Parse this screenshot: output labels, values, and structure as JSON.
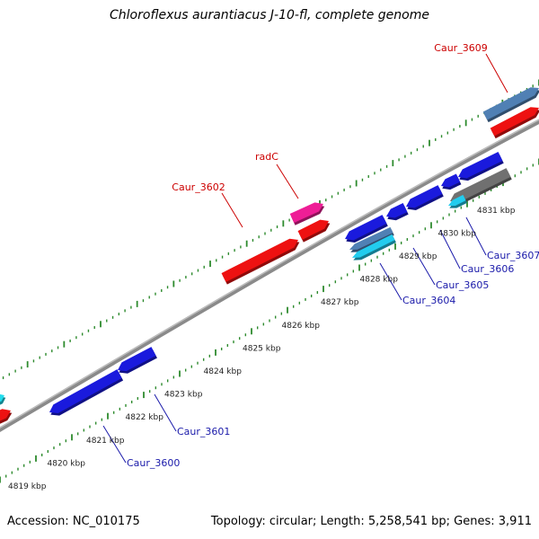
{
  "title": "Chloroflexus aurantiacus J-10-fl, complete genome",
  "accession": "Accession: NC_010175",
  "stats": "Topology: circular; Length: 5,258,541 bp; Genes: 3,911",
  "colors": {
    "backbone": "#8a8a8a",
    "ruler_tick": "#2e8b2e",
    "forward_label": "#cc0000",
    "reverse_label": "#1a1aaa"
  },
  "genes": [
    {
      "id": "fwd-3609-top",
      "strand": "forward",
      "color": "#5080b4"
    },
    {
      "id": "fwd-3609",
      "strand": "forward",
      "color": "#ee1111"
    },
    {
      "id": "fwd-radC-top",
      "strand": "forward",
      "color": "#ee1e96"
    },
    {
      "id": "fwd-radC",
      "strand": "forward",
      "color": "#ee1111"
    },
    {
      "id": "fwd-3602",
      "strand": "forward",
      "color": "#ee1111"
    },
    {
      "id": "fwd-left-cyan",
      "strand": "forward",
      "color": "#22ddee"
    },
    {
      "id": "fwd-left-red",
      "strand": "forward",
      "color": "#ee1111"
    },
    {
      "id": "rev-3600",
      "strand": "reverse",
      "color": "#1a1add"
    },
    {
      "id": "rev-3601",
      "strand": "reverse",
      "color": "#1a1add"
    },
    {
      "id": "rev-3603",
      "strand": "reverse",
      "color": "#1a1add"
    },
    {
      "id": "rev-3604-top",
      "strand": "reverse",
      "color": "#5080b4"
    },
    {
      "id": "rev-3604",
      "strand": "reverse",
      "color": "#22ccee"
    },
    {
      "id": "rev-3605",
      "strand": "reverse",
      "color": "#1a1add"
    },
    {
      "id": "rev-3606",
      "strand": "reverse",
      "color": "#1a1add"
    },
    {
      "id": "rev-3607-top",
      "strand": "reverse",
      "color": "#1a1add"
    },
    {
      "id": "rev-3607-grey",
      "strand": "reverse",
      "color": "#707070"
    },
    {
      "id": "rev-3607-cyan",
      "strand": "reverse",
      "color": "#22ccee"
    },
    {
      "id": "rev-3607-blue",
      "strand": "reverse",
      "color": "#1a1add"
    },
    {
      "id": "rev-3608",
      "strand": "reverse",
      "color": "#1a1add"
    }
  ],
  "gene_labels": [
    {
      "text": "Caur_3609",
      "strand": "forward"
    },
    {
      "text": "radC",
      "strand": "forward"
    },
    {
      "text": "Caur_3602",
      "strand": "forward"
    },
    {
      "text": "Caur_3600",
      "strand": "reverse"
    },
    {
      "text": "Caur_3601",
      "strand": "reverse"
    },
    {
      "text": "Caur_3604",
      "strand": "reverse"
    },
    {
      "text": "Caur_3605",
      "strand": "reverse"
    },
    {
      "text": "Caur_3606",
      "strand": "reverse"
    },
    {
      "text": "Caur_3607",
      "strand": "reverse"
    }
  ],
  "ruler_labels": [
    "4819 kbp",
    "4820 kbp",
    "4821 kbp",
    "4822 kbp",
    "4823 kbp",
    "4824 kbp",
    "4825 kbp",
    "4826 kbp",
    "4827 kbp",
    "4828 kbp",
    "4829 kbp",
    "4830 kbp",
    "4831 kbp"
  ]
}
